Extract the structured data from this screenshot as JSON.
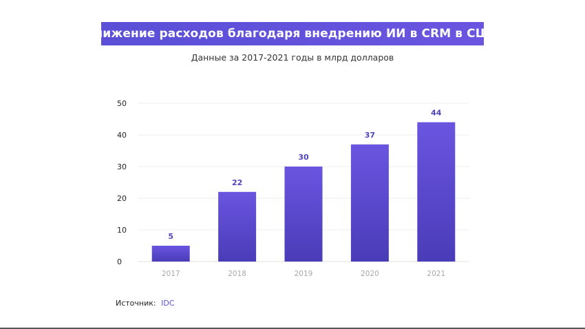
{
  "chart_data": {
    "type": "bar",
    "title": "Снижение расходов благодаря внедрению ИИ в CRM в США",
    "subtitle": "Данные за 2017-2021 годы в млрд долларов",
    "categories": [
      "2017",
      "2018",
      "2019",
      "2020",
      "2021"
    ],
    "values": [
      5,
      22,
      30,
      37,
      44
    ],
    "y_ticks": [
      0,
      10,
      20,
      30,
      40,
      50
    ],
    "ylim": [
      0,
      50
    ],
    "grid": true,
    "legend": "none",
    "colors": {
      "bar_top": "#6a55e0",
      "bar_bottom": "#4a3cb8",
      "value_label": "#4f44b5",
      "title_bg": "#5a4fd6"
    }
  },
  "source": {
    "label": "Источник:",
    "value": "IDC"
  }
}
